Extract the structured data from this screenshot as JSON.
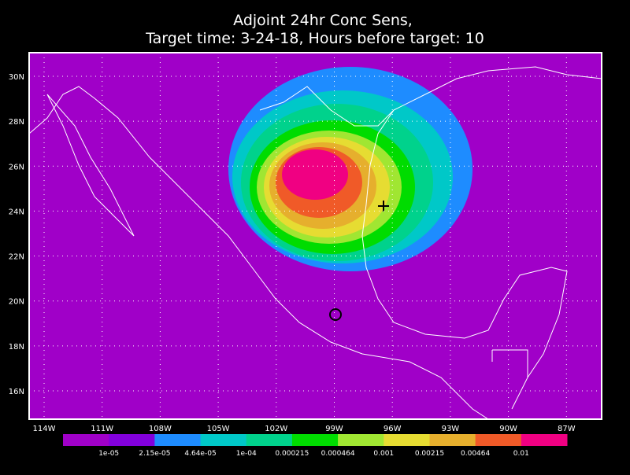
{
  "title": [
    "Adjoint 24hr Conc Sens,",
    "Target time: 3-24-18, Hours before target: 10"
  ],
  "map": {
    "lat_labels": [
      "30N",
      "28N",
      "26N",
      "24N",
      "22N",
      "20N",
      "18N",
      "16N"
    ],
    "lon_labels": [
      "114W",
      "111W",
      "108W",
      "105W",
      "102W",
      "99W",
      "96W",
      "93W",
      "90W",
      "87W"
    ]
  },
  "colorbar": {
    "colors": [
      "#a000c8",
      "#8200dc",
      "#1e8cff",
      "#00c8c8",
      "#00d28c",
      "#00dc00",
      "#a0e632",
      "#e6dc32",
      "#e6af2d",
      "#f05a28",
      "#f00082"
    ],
    "labels": [
      "1e-05",
      "2.15e-05",
      "4.64e-05",
      "1e-04",
      "0.000215",
      "0.000464",
      "0.001",
      "0.00215",
      "0.00464",
      "0.01"
    ]
  }
}
